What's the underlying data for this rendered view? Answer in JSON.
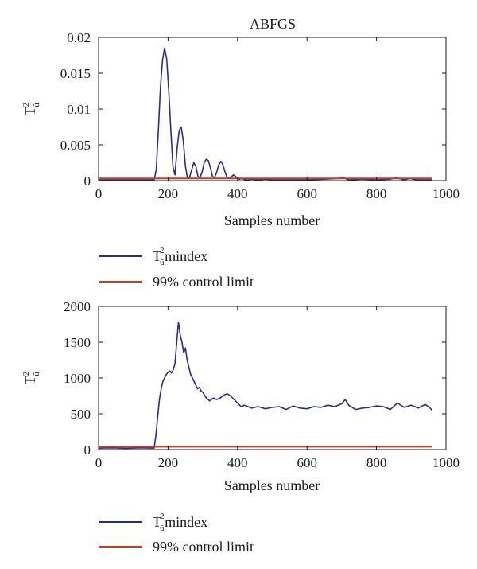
{
  "title": "ABFGS",
  "colors": {
    "statistic": "#2b2b8f",
    "limit": "#d2391b",
    "axis": "#1a1a1a"
  },
  "chart_data": [
    {
      "type": "line",
      "xlabel": "Samples number",
      "ylabel": "T",
      "ylabel_sup": "2",
      "ylabel_sub": "û",
      "xlim": [
        0,
        1000
      ],
      "ylim": [
        0,
        0.02
      ],
      "xticks": [
        0,
        200,
        400,
        600,
        800,
        1000
      ],
      "yticks": [
        0,
        0.005,
        0.01,
        0.015,
        0.02
      ],
      "ytick_labels": [
        "0",
        "0.005",
        "0.01",
        "0.015",
        "0.02"
      ],
      "legend_placement": "below",
      "series": [
        {
          "name": "T mindex",
          "name_sup": "2",
          "name_sub": "û",
          "color": "#2b2b8f",
          "x": [
            0,
            160,
            166,
            172,
            178,
            184,
            190,
            196,
            202,
            208,
            214,
            220,
            226,
            232,
            238,
            244,
            250,
            256,
            262,
            268,
            274,
            280,
            286,
            292,
            298,
            304,
            310,
            316,
            322,
            328,
            334,
            340,
            346,
            352,
            358,
            364,
            370,
            376,
            382,
            388,
            394,
            400,
            406,
            412,
            418,
            424,
            430,
            440,
            460,
            480,
            500,
            540,
            600,
            650,
            690,
            700,
            710,
            720,
            760,
            800,
            840,
            855,
            865,
            880,
            895,
            905,
            920,
            960
          ],
          "y": [
            0.0001,
            0.0001,
            0.0015,
            0.007,
            0.013,
            0.0168,
            0.0185,
            0.017,
            0.0125,
            0.007,
            0.002,
            0.0008,
            0.0045,
            0.007,
            0.0075,
            0.0055,
            0.002,
            0.0003,
            0.0005,
            0.0015,
            0.0025,
            0.002,
            0.0006,
            0.0004,
            0.0012,
            0.0025,
            0.003,
            0.0028,
            0.0018,
            0.0006,
            0.0004,
            0.0012,
            0.0022,
            0.0027,
            0.0022,
            0.0012,
            0.0004,
            0.0003,
            0.0005,
            0.0008,
            0.0006,
            0.0003,
            0.0002,
            0.0003,
            0.0002,
            0.0001,
            0.0001,
            0.0002,
            0.0001,
            0.0002,
            0.0001,
            0.0001,
            0.0001,
            0.0002,
            0.0003,
            0.0005,
            0.0003,
            0.0001,
            0.0002,
            0.0001,
            0.0002,
            0.0004,
            0.0003,
            0.0001,
            0.0003,
            0.0002,
            0.0001,
            0.0001
          ]
        },
        {
          "name": "99% control limit",
          "color": "#d2391b",
          "x": [
            0,
            960
          ],
          "y": [
            0.0003,
            0.0003
          ]
        }
      ]
    },
    {
      "type": "line",
      "xlabel": "Samples number",
      "ylabel": "T",
      "ylabel_sup": "2",
      "ylabel_sub": "ũ",
      "xlim": [
        0,
        1000
      ],
      "ylim": [
        0,
        2000
      ],
      "xticks": [
        0,
        200,
        400,
        600,
        800,
        1000
      ],
      "yticks": [
        0,
        500,
        1000,
        1500,
        2000
      ],
      "ytick_labels": [
        "0",
        "500",
        "1000",
        "1500",
        "2000"
      ],
      "legend_placement": "below",
      "series": [
        {
          "name": "T mindex",
          "name_sup": "2",
          "name_sub": "ũ",
          "color": "#2b2b8f",
          "x": [
            0,
            40,
            80,
            120,
            160,
            165,
            170,
            175,
            180,
            185,
            190,
            195,
            200,
            205,
            210,
            215,
            220,
            225,
            230,
            235,
            240,
            245,
            250,
            255,
            260,
            265,
            270,
            275,
            280,
            285,
            290,
            295,
            300,
            310,
            320,
            330,
            340,
            350,
            360,
            370,
            380,
            390,
            400,
            410,
            420,
            440,
            460,
            480,
            500,
            520,
            540,
            560,
            580,
            600,
            620,
            640,
            660,
            680,
            700,
            710,
            720,
            740,
            760,
            780,
            800,
            820,
            840,
            860,
            880,
            900,
            920,
            940,
            950,
            960
          ],
          "y": [
            20,
            25,
            18,
            25,
            20,
            200,
            450,
            700,
            850,
            950,
            1000,
            1050,
            1080,
            1100,
            1070,
            1120,
            1200,
            1500,
            1780,
            1600,
            1500,
            1350,
            1420,
            1250,
            1150,
            1050,
            1000,
            950,
            900,
            850,
            870,
            820,
            800,
            720,
            680,
            720,
            700,
            720,
            760,
            780,
            750,
            700,
            650,
            600,
            620,
            580,
            600,
            570,
            590,
            600,
            560,
            610,
            580,
            570,
            600,
            590,
            620,
            600,
            640,
            700,
            620,
            560,
            580,
            590,
            610,
            600,
            560,
            650,
            590,
            620,
            580,
            630,
            600,
            550
          ]
        },
        {
          "name": "99% control limit",
          "color": "#d2391b",
          "x": [
            0,
            960
          ],
          "y": [
            40,
            40
          ]
        }
      ]
    }
  ]
}
